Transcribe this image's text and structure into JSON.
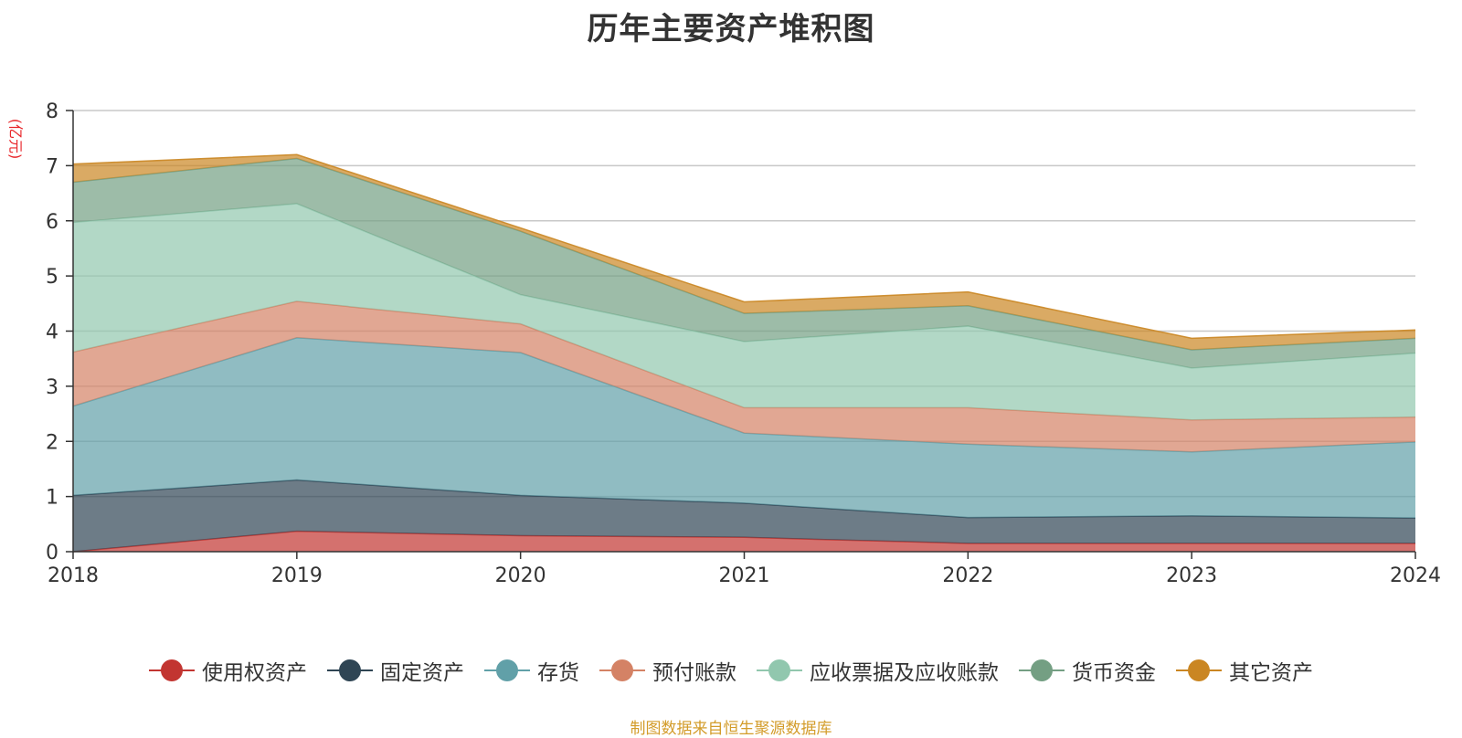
{
  "chart_data": {
    "type": "area",
    "stacked": true,
    "title": "历年主要资产堆积图",
    "ylabel": "(亿元)",
    "xlabel": "",
    "x": [
      "2018",
      "2019",
      "2020",
      "2021",
      "2022",
      "2023",
      "2024"
    ],
    "ylim": [
      0,
      8
    ],
    "yticks": [
      "0",
      "1",
      "2",
      "3",
      "4",
      "5",
      "6",
      "7",
      "8"
    ],
    "grid": true,
    "legend_position": "bottom",
    "series": [
      {
        "name": "使用权资产",
        "color": "#c23531",
        "values": [
          0.0,
          0.37,
          0.29,
          0.26,
          0.15,
          0.15,
          0.15
        ]
      },
      {
        "name": "固定资产",
        "color": "#2f4554",
        "values": [
          1.02,
          0.93,
          0.73,
          0.62,
          0.47,
          0.5,
          0.46
        ]
      },
      {
        "name": "存货",
        "color": "#61a0a8",
        "values": [
          1.62,
          2.58,
          2.59,
          1.27,
          1.33,
          1.16,
          1.38
        ]
      },
      {
        "name": "预付账款",
        "color": "#d48265",
        "values": [
          0.98,
          0.66,
          0.52,
          0.46,
          0.66,
          0.58,
          0.45
        ]
      },
      {
        "name": "应收票据及应收账款",
        "color": "#91c7ae",
        "values": [
          2.35,
          1.77,
          0.53,
          1.2,
          1.48,
          0.94,
          1.16
        ]
      },
      {
        "name": "货币资金",
        "color": "#749f83",
        "values": [
          0.73,
          0.82,
          1.15,
          0.51,
          0.37,
          0.33,
          0.27
        ]
      },
      {
        "name": "其它资产",
        "color": "#ca8622",
        "values": [
          0.33,
          0.07,
          0.06,
          0.21,
          0.25,
          0.21,
          0.15
        ]
      }
    ]
  },
  "source_note": "制图数据来自恒生聚源数据库"
}
